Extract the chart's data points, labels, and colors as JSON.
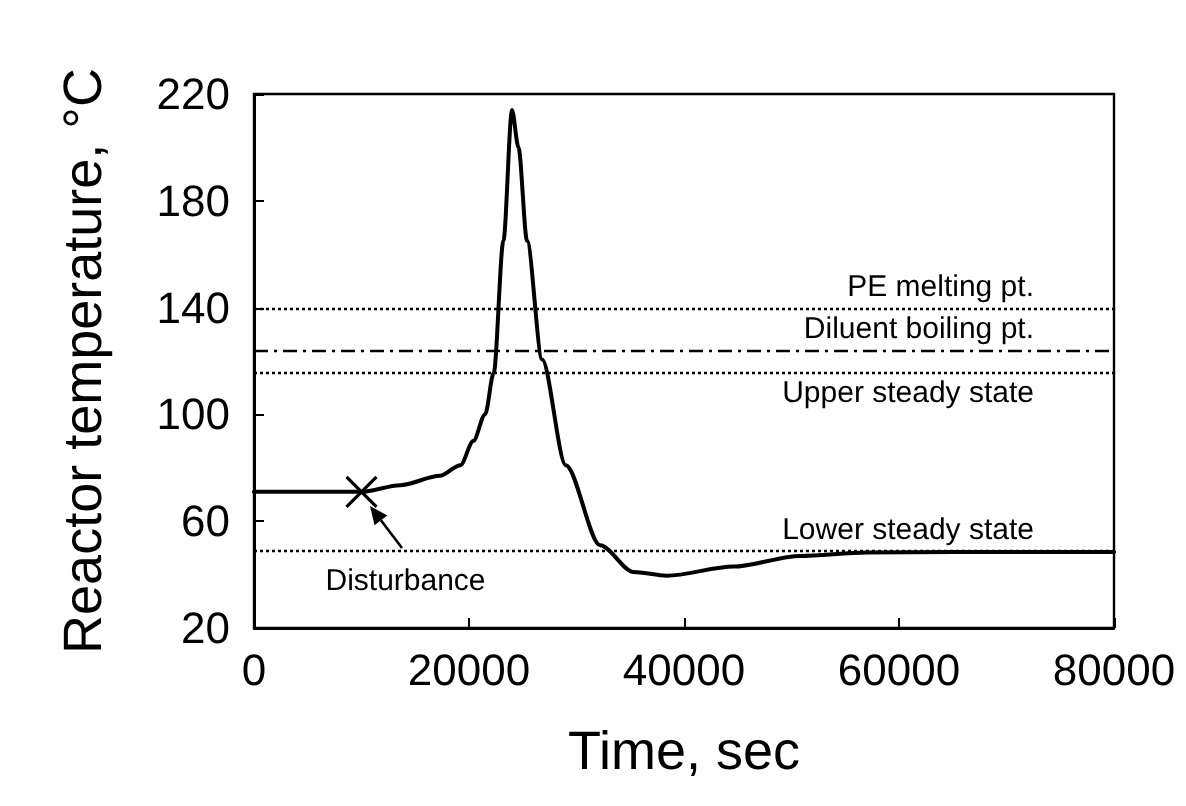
{
  "chart_data": {
    "type": "line",
    "xlabel": "Time, sec",
    "ylabel": "Reactor temperature, °C",
    "xlim": [
      0,
      80000
    ],
    "xticks": [
      0,
      20000,
      40000,
      60000,
      80000
    ],
    "ylim": [
      20,
      220
    ],
    "yticks": [
      20,
      60,
      100,
      140,
      180,
      220
    ],
    "grid": false,
    "marker": "none",
    "line_style": "solid",
    "series": [
      {
        "color": "#000000",
        "x": [
          0,
          5000,
          10000,
          13600,
          17300,
          19200,
          20400,
          21500,
          22300,
          23200,
          24000,
          24600,
          25400,
          26800,
          29000,
          32200,
          35300,
          38400,
          44600,
          50800,
          57000,
          65000,
          80000
        ],
        "values": [
          71,
          71,
          71,
          73.5,
          77,
          81,
          90,
          100,
          115.5,
          165,
          214,
          200,
          165,
          120.6,
          81,
          51,
          41,
          39.6,
          43,
          47,
          48.3,
          48.5,
          48.5
        ]
      }
    ],
    "ref_lines": [
      {
        "axis": "y",
        "value": 140,
        "label": "PE melting pt.",
        "color": "#000000",
        "line_style": "dotted"
      },
      {
        "axis": "y",
        "value": 124,
        "label": "Diluent boiling pt.",
        "color": "#000000",
        "line_style": "dashed"
      },
      {
        "axis": "y",
        "value": 116,
        "label": "Upper steady state",
        "color": "#000000",
        "line_style": "dotted"
      },
      {
        "axis": "y",
        "value": 49,
        "label": "Lower steady state",
        "color": "#000000",
        "line_style": "dotted"
      }
    ],
    "annotations": [
      {
        "text": "Disturbance",
        "x": 10000,
        "y": 71
      }
    ]
  }
}
